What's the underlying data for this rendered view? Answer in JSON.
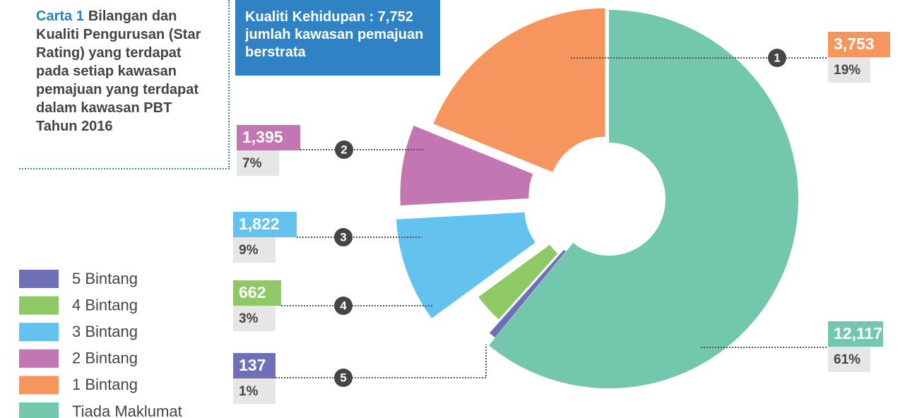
{
  "chart_data": {
    "type": "donut",
    "title_prefix": "Carta 1",
    "title": "Bilangan dan Kualiti Pengurusan (Star Rating) yang terdapat pada setiap kawasan pemajuan yang terdapat dalam kawasan PBT Tahun 2016",
    "annotation": "Kualiti Kehidupan : 7,752 jumlah kawasan pemajuan berstrata",
    "categories": [
      "Tiada Maklumat",
      "5 Bintang",
      "4 Bintang",
      "3 Bintang",
      "2 Bintang",
      "1 Bintang"
    ],
    "values": [
      12117,
      137,
      662,
      1822,
      1395,
      3753
    ],
    "value_labels": [
      "12,117",
      "137",
      "662",
      "1,822",
      "1,395",
      "3,753"
    ],
    "percents": [
      61,
      1,
      3,
      9,
      7,
      19
    ],
    "percent_labels": [
      "61%",
      "1%",
      "3%",
      "9%",
      "7%",
      "19%"
    ],
    "callouts": [
      null,
      5,
      4,
      3,
      2,
      1
    ],
    "colors": [
      "#73c7ac",
      "#6e6fb6",
      "#8ec966",
      "#63c3ee",
      "#c277b3",
      "#f7955e"
    ]
  }
}
